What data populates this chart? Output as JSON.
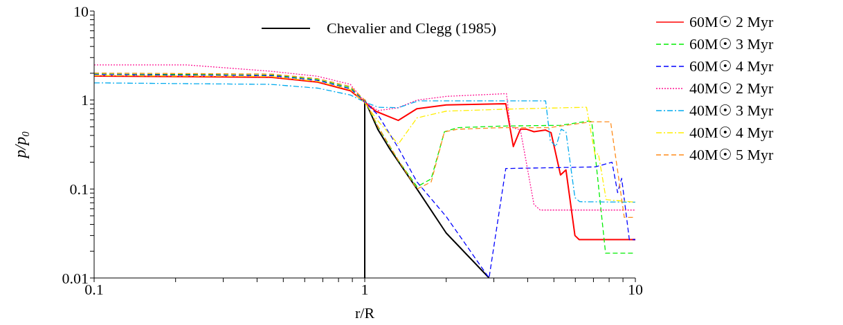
{
  "chart_data": {
    "type": "line",
    "xlabel": "r/R",
    "ylabel": "p/p₀",
    "log": "xy",
    "grid": false,
    "legend": "right",
    "xlim": [
      0.1,
      10
    ],
    "ylim": [
      0.01,
      10
    ],
    "xticks": [
      0.1,
      {
        "value": 0.2,
        "label": null
      },
      {
        "value": 0.3,
        "label": null
      },
      {
        "value": 0.4,
        "label": null
      },
      {
        "value": 0.5,
        "label": null
      },
      {
        "value": 0.6,
        "label": null
      },
      {
        "value": 0.7,
        "label": null
      },
      {
        "value": 0.8,
        "label": null
      },
      {
        "value": 0.9,
        "label": null
      },
      1,
      {
        "value": 2,
        "label": null
      },
      {
        "value": 3,
        "label": null
      },
      {
        "value": 4,
        "label": null
      },
      {
        "value": 5,
        "label": null
      },
      {
        "value": 6,
        "label": null
      },
      {
        "value": 7,
        "label": null
      },
      {
        "value": 8,
        "label": null
      },
      {
        "value": 9,
        "label": null
      },
      10
    ],
    "yticks": [
      0.01,
      {
        "value": 0.02,
        "label": null
      },
      {
        "value": 0.03,
        "label": null
      },
      {
        "value": 0.04,
        "label": null
      },
      {
        "value": 0.05,
        "label": null
      },
      {
        "value": 0.06,
        "label": null
      },
      {
        "value": 0.07,
        "label": null
      },
      {
        "value": 0.08,
        "label": null
      },
      {
        "value": 0.09,
        "label": null
      },
      0.1,
      {
        "value": 0.2,
        "label": null
      },
      {
        "value": 0.3,
        "label": null
      },
      {
        "value": 0.4,
        "label": null
      },
      {
        "value": 0.5,
        "label": null
      },
      {
        "value": 0.6,
        "label": null
      },
      {
        "value": 0.7,
        "label": null
      },
      {
        "value": 0.8,
        "label": null
      },
      {
        "value": 0.9,
        "label": null
      },
      1,
      {
        "value": 2,
        "label": null
      },
      {
        "value": 3,
        "label": null
      },
      {
        "value": 4,
        "label": null
      },
      {
        "value": 5,
        "label": null
      },
      {
        "value": 6,
        "label": null
      },
      {
        "value": 7,
        "label": null
      },
      {
        "value": 8,
        "label": null
      },
      {
        "value": 9,
        "label": null
      },
      10
    ],
    "series": [
      {
        "name": "Chevalier and Clegg (1985)",
        "color": "#000000",
        "line_style": "solid",
        "x": [
          1,
          1,
          1.117,
          1.23,
          1.56,
          2.0,
          2.88
        ],
        "values": [
          0.01,
          1,
          0.47,
          0.29,
          0.1,
          0.032,
          0.01
        ]
      },
      {
        "name": "60M☉ 2 Myr",
        "color": "#ff0000",
        "line_style": "solid",
        "x": [
          0.1,
          0.45,
          0.67,
          0.885,
          1,
          1.1,
          1.33,
          1.56,
          2.0,
          3.32,
          3.54,
          3.76,
          3.96,
          4.22,
          4.66,
          4.88,
          5.29,
          5.54,
          5.98,
          6.2,
          10
        ],
        "values": [
          1.86,
          1.8,
          1.59,
          1.27,
          0.95,
          0.746,
          0.59,
          0.8,
          0.88,
          0.91,
          0.3,
          0.47,
          0.47,
          0.44,
          0.46,
          0.43,
          0.144,
          0.164,
          0.03,
          0.027,
          0.027
        ]
      },
      {
        "name": "60M☉ 3 Myr",
        "color": "#00ee00",
        "line_style": "dashed",
        "x": [
          0.1,
          0.45,
          0.67,
          0.885,
          1,
          1.12,
          1.33,
          1.56,
          1.76,
          1.97,
          2.21,
          3.24,
          5.29,
          6.7,
          6.9,
          7.76,
          10
        ],
        "values": [
          1.97,
          1.92,
          1.7,
          1.38,
          0.98,
          0.5,
          0.21,
          0.106,
          0.13,
          0.44,
          0.49,
          0.51,
          0.52,
          0.58,
          0.57,
          0.019,
          0.019
        ]
      },
      {
        "name": "60M☉ 4 Myr",
        "color": "#0000ff",
        "line_style": "dashed",
        "x": [
          0.1,
          0.45,
          0.67,
          0.885,
          1,
          1.12,
          1.33,
          1.56,
          2.0,
          2.88,
          3.32,
          7.1,
          8.2,
          8.6,
          8.9,
          9.5,
          10
        ],
        "values": [
          1.93,
          1.88,
          1.66,
          1.34,
          0.95,
          0.68,
          0.29,
          0.12,
          0.049,
          0.01,
          0.17,
          0.177,
          0.2,
          0.091,
          0.132,
          0.027,
          0.027
        ]
      },
      {
        "name": "40M☉ 2 Myr",
        "color": "#ff1493",
        "line_style": "dotted",
        "x": [
          0.1,
          0.22,
          0.447,
          0.67,
          0.885,
          1,
          1.12,
          1.33,
          1.56,
          2.0,
          3.34,
          3.45,
          3.76,
          4.22,
          4.45,
          10
        ],
        "values": [
          2.48,
          2.48,
          2.11,
          1.85,
          1.5,
          0.95,
          0.76,
          0.82,
          1.0,
          1.1,
          1.18,
          0.5,
          0.46,
          0.067,
          0.058,
          0.058
        ]
      },
      {
        "name": "40M☉ 3 Myr",
        "color": "#00aaee",
        "line_style": "dashdot",
        "x": [
          0.1,
          0.45,
          0.67,
          0.885,
          1,
          1.12,
          1.33,
          1.58,
          2.21,
          4.66,
          4.85,
          5.09,
          5.32,
          5.54,
          5.98,
          6.23,
          10
        ],
        "values": [
          1.56,
          1.5,
          1.36,
          1.14,
          0.95,
          0.83,
          0.82,
          0.98,
          0.98,
          0.98,
          0.35,
          0.3,
          0.47,
          0.44,
          0.08,
          0.072,
          0.071
        ]
      },
      {
        "name": "40M☉ 4 Myr",
        "color": "#ffee00",
        "line_style": "dashdot",
        "x": [
          0.1,
          0.45,
          0.67,
          0.885,
          1,
          1.12,
          1.33,
          1.56,
          2.0,
          3.32,
          6.6,
          7.1,
          7.3,
          7.8,
          10
        ],
        "values": [
          1.89,
          1.84,
          1.62,
          1.31,
          0.93,
          0.58,
          0.32,
          0.63,
          0.75,
          0.79,
          0.83,
          0.24,
          0.25,
          0.076,
          0.071
        ]
      },
      {
        "name": "40M☉ 5 Myr",
        "color": "#ff8c1a",
        "line_style": "dashed",
        "x": [
          0.1,
          0.45,
          0.67,
          0.885,
          1,
          1.12,
          1.33,
          1.56,
          1.76,
          1.97,
          2.21,
          3.24,
          4.8,
          6.9,
          8.1,
          8.6,
          9.1,
          10
        ],
        "values": [
          2.01,
          1.96,
          1.74,
          1.42,
          1.0,
          0.5,
          0.21,
          0.1,
          0.12,
          0.44,
          0.47,
          0.49,
          0.49,
          0.57,
          0.57,
          0.16,
          0.048,
          0.048
        ]
      }
    ]
  }
}
